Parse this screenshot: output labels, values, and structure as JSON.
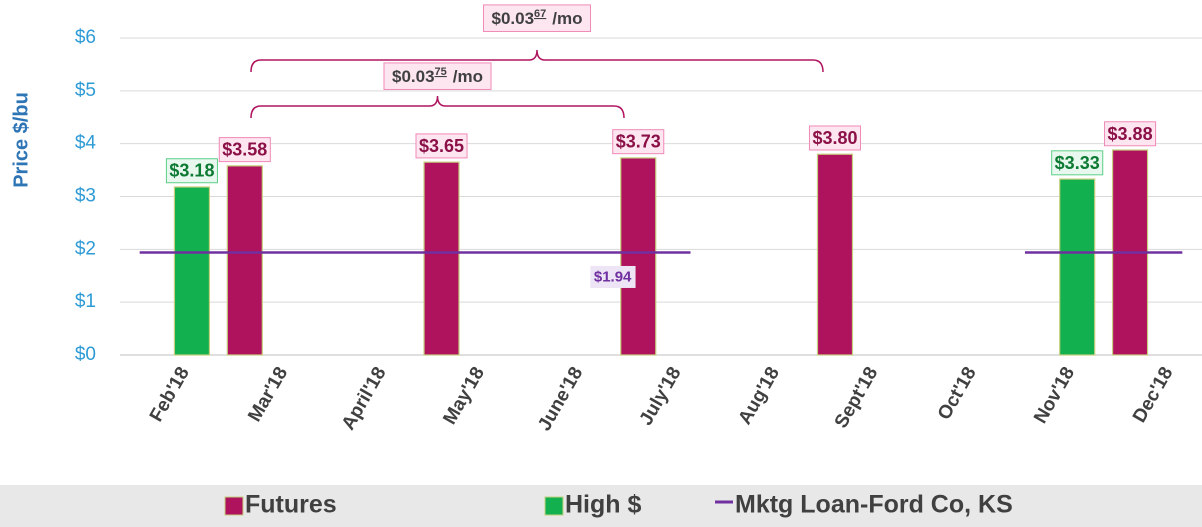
{
  "chart_data": {
    "type": "bar",
    "y_label": "Price $/bu",
    "categories": [
      "Feb'18",
      "Mar'18",
      "April'18",
      "May'18",
      "June'18",
      "July'18",
      "Aug'18",
      "Sept'18",
      "Oct'18",
      "Nov'18",
      "Dec'18"
    ],
    "series": [
      {
        "name": "Futures",
        "color": "#b0135e",
        "values": [
          null,
          3.58,
          null,
          3.65,
          null,
          3.73,
          null,
          3.8,
          null,
          null,
          3.88
        ],
        "value_labels": [
          null,
          "$3.58",
          null,
          "$3.65",
          null,
          "$3.73",
          null,
          "$3.80",
          null,
          null,
          "$3.88"
        ]
      },
      {
        "name": "High $",
        "color": "#12b04e",
        "values": [
          3.18,
          null,
          null,
          null,
          null,
          null,
          null,
          null,
          null,
          3.33,
          null
        ],
        "value_labels": [
          "$3.18",
          null,
          null,
          null,
          null,
          null,
          null,
          null,
          null,
          "$3.33",
          null
        ]
      },
      {
        "name": "Mktg Loan-Ford Co, KS",
        "type": "line",
        "color": "#7030a0",
        "values": [
          1.94,
          1.94,
          1.94,
          1.94,
          1.94,
          1.94,
          null,
          null,
          null,
          1.94,
          1.94
        ],
        "value_labels": [
          null,
          null,
          null,
          null,
          "$1.94",
          null,
          null,
          null,
          null,
          null,
          null
        ]
      }
    ],
    "annotations": [
      {
        "text": "$0.03",
        "sup": "67",
        "unit": "/mo"
      },
      {
        "text": "$0.03",
        "sup": "75",
        "unit": "/mo"
      }
    ],
    "ylim": [
      0,
      6
    ],
    "yticks": [
      {
        "value": 0,
        "label": "$0"
      },
      {
        "value": 1,
        "label": "$1"
      },
      {
        "value": 2,
        "label": "$2"
      },
      {
        "value": 3,
        "label": "$3"
      },
      {
        "value": 4,
        "label": "$4"
      },
      {
        "value": 5,
        "label": "$5"
      },
      {
        "value": 6,
        "label": "$6"
      }
    ],
    "grid": true,
    "legend": "bottom"
  }
}
